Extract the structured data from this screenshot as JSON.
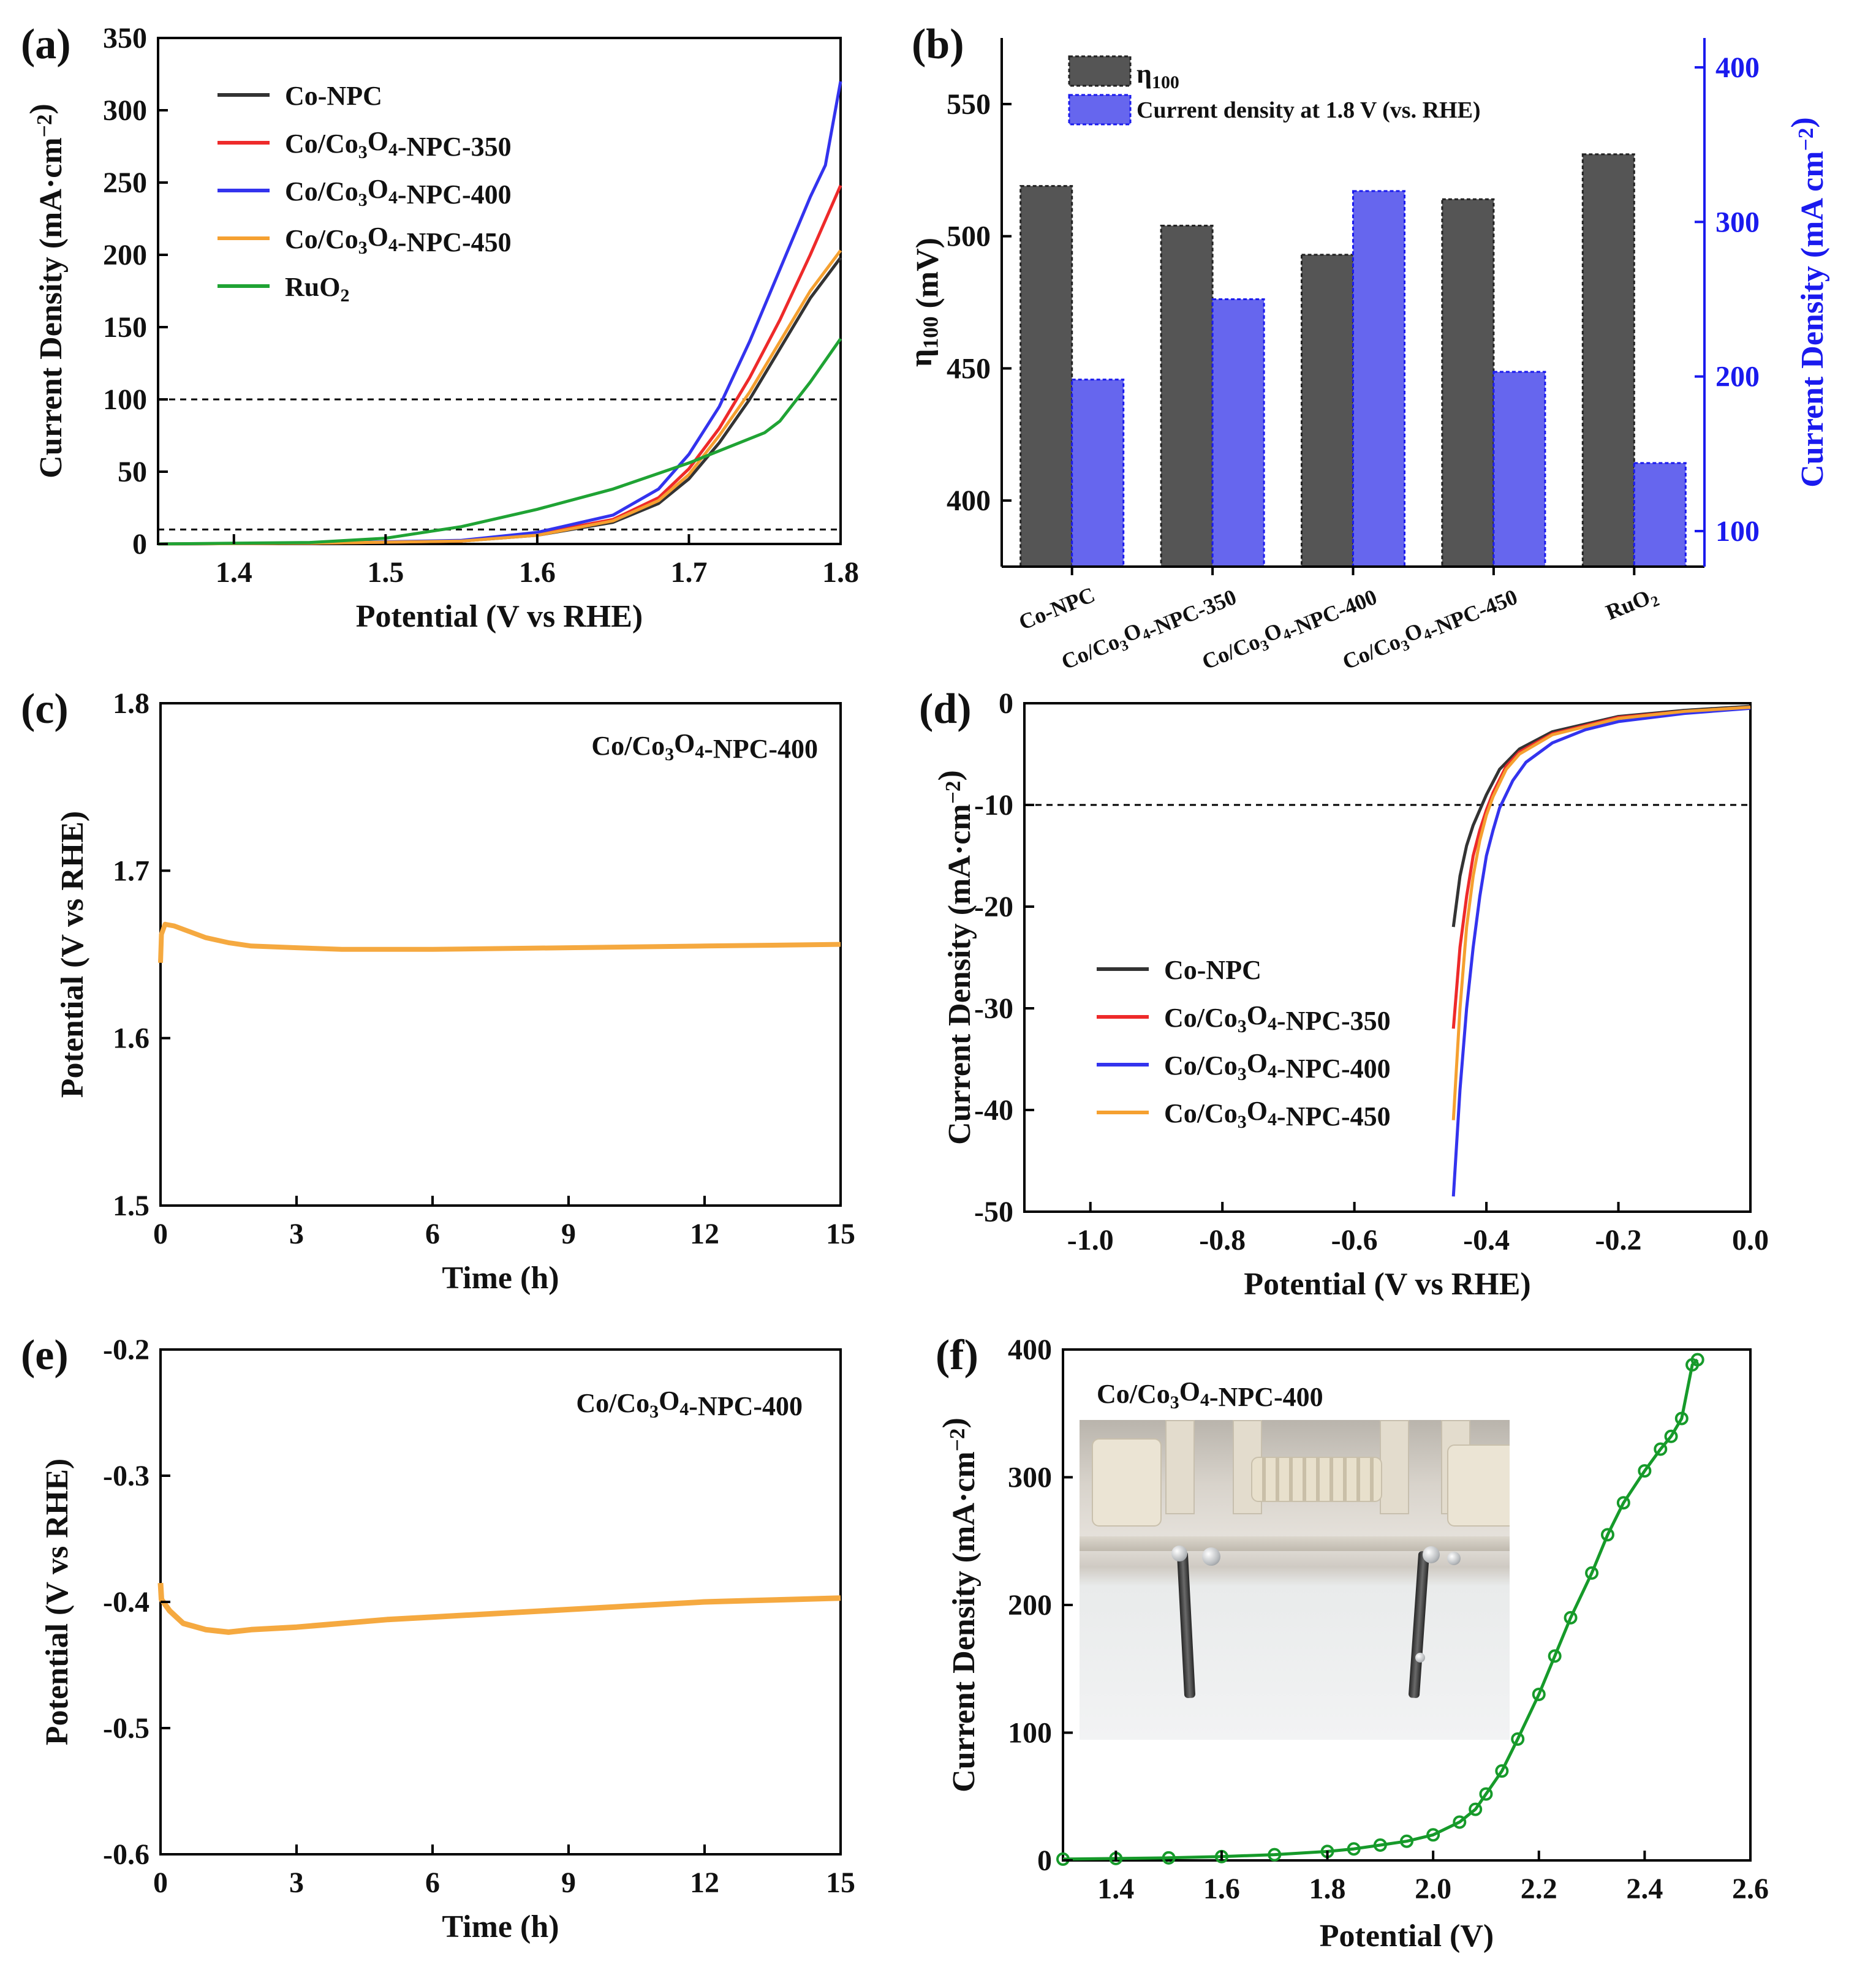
{
  "chart_data": [
    {
      "panel": "(a)",
      "type": "line",
      "xlabel": "Potential (V vs RHE)",
      "ylabel": "Current Density (mA·cm⁻²)",
      "xlim": [
        1.35,
        1.8
      ],
      "ylim": [
        0,
        350
      ],
      "xticks": [
        "1.4",
        "1.5",
        "1.6",
        "1.7",
        "1.8"
      ],
      "yticks": [
        "0",
        "50",
        "100",
        "150",
        "200",
        "250",
        "300",
        "350"
      ],
      "reference_lines": [
        100,
        10
      ],
      "legend": [
        "Co-NPC",
        "Co/Co3O4-NPC-350",
        "Co/Co3O4-NPC-400",
        "Co/Co3O4-NPC-450",
        "RuO2"
      ],
      "series": [
        {
          "name": "Co-NPC",
          "color": "#333333",
          "x": [
            1.35,
            1.45,
            1.55,
            1.6,
            1.65,
            1.68,
            1.7,
            1.72,
            1.74,
            1.76,
            1.78,
            1.8
          ],
          "y": [
            0,
            0.5,
            2,
            6,
            15,
            28,
            45,
            70,
            100,
            135,
            170,
            198
          ]
        },
        {
          "name": "Co/Co3O4-NPC-350",
          "color": "#ee2a2a",
          "x": [
            1.35,
            1.45,
            1.55,
            1.6,
            1.65,
            1.68,
            1.7,
            1.72,
            1.74,
            1.76,
            1.78,
            1.8
          ],
          "y": [
            0,
            0.5,
            2,
            7,
            17,
            32,
            52,
            80,
            115,
            155,
            200,
            248
          ]
        },
        {
          "name": "Co/Co3O4-NPC-400",
          "color": "#3333ee",
          "x": [
            1.35,
            1.45,
            1.55,
            1.6,
            1.65,
            1.68,
            1.7,
            1.72,
            1.74,
            1.76,
            1.78,
            1.79,
            1.8
          ],
          "y": [
            0,
            0.5,
            2.5,
            8,
            20,
            38,
            62,
            95,
            140,
            190,
            240,
            262,
            320
          ]
        },
        {
          "name": "Co/Co3O4-NPC-450",
          "color": "#f5a030",
          "x": [
            1.35,
            1.45,
            1.55,
            1.6,
            1.65,
            1.68,
            1.7,
            1.72,
            1.74,
            1.76,
            1.78,
            1.8
          ],
          "y": [
            0,
            0.5,
            2,
            6,
            16,
            30,
            48,
            75,
            105,
            140,
            175,
            203
          ]
        },
        {
          "name": "RuO2",
          "color": "#1fa334",
          "x": [
            1.35,
            1.45,
            1.5,
            1.55,
            1.6,
            1.65,
            1.7,
            1.75,
            1.76,
            1.78,
            1.8
          ],
          "y": [
            0,
            1,
            4,
            12,
            24,
            38,
            56,
            77,
            85,
            112,
            142
          ]
        }
      ]
    },
    {
      "panel": "(b)",
      "type": "bar",
      "categories": [
        "Co-NPC",
        "Co/Co3O4-NPC-350",
        "Co/Co3O4-NPC-400",
        "Co/Co3O4-NPC-450",
        "RuO2"
      ],
      "ylabel": "η100 (mV)",
      "y2label": "Current Density (mA cm⁻²)",
      "ylim": [
        375,
        575
      ],
      "y2lim": [
        77,
        419
      ],
      "yticks": [
        "400",
        "450",
        "500",
        "550"
      ],
      "y2ticks": [
        "100",
        "200",
        "300",
        "400"
      ],
      "legend": [
        "η100",
        "Current density at 1.8 V (vs. RHE)"
      ],
      "series": [
        {
          "name": "η100",
          "color": "#555555",
          "axis": "left",
          "values": [
            519,
            504,
            493,
            514,
            531
          ]
        },
        {
          "name": "Current density at 1.8 V (vs. RHE)",
          "color": "#6666ee",
          "axis": "right",
          "values": [
            198,
            250,
            320,
            203,
            144
          ]
        }
      ]
    },
    {
      "panel": "(c)",
      "type": "line",
      "annotation": "Co/Co3O4-NPC-400",
      "xlabel": "Time (h)",
      "ylabel": "Potential (V vs RHE)",
      "xlim": [
        0,
        15
      ],
      "ylim": [
        1.5,
        1.8
      ],
      "xticks": [
        "0",
        "3",
        "6",
        "9",
        "12",
        "15"
      ],
      "yticks": [
        "1.5",
        "1.6",
        "1.7",
        "1.8"
      ],
      "series": [
        {
          "name": "Co/Co3O4-NPC-400",
          "color": "#f5a940",
          "x": [
            0,
            0.02,
            0.1,
            0.3,
            0.6,
            1,
            1.5,
            2,
            3,
            4,
            6,
            9,
            12,
            15
          ],
          "y": [
            1.645,
            1.662,
            1.668,
            1.667,
            1.664,
            1.66,
            1.657,
            1.655,
            1.654,
            1.653,
            1.653,
            1.654,
            1.655,
            1.656
          ]
        }
      ]
    },
    {
      "panel": "(d)",
      "type": "line",
      "xlabel": "Potential (V vs RHE)",
      "ylabel": "Current Density (mA·cm⁻²)",
      "xlim": [
        -1.1,
        0
      ],
      "ylim": [
        -50,
        0
      ],
      "xticks": [
        "-1.0",
        "-0.8",
        "-0.6",
        "-0.4",
        "-0.2",
        "0.0"
      ],
      "yticks": [
        "-50",
        "-40",
        "-30",
        "-20",
        "-10",
        "0"
      ],
      "reference_lines": [
        -10
      ],
      "legend": [
        "Co-NPC",
        "Co/Co3O4-NPC-350",
        "Co/Co3O4-NPC-400",
        "Co/Co3O4-NPC-450"
      ],
      "series": [
        {
          "name": "Co-NPC",
          "color": "#333333",
          "x": [
            -0.45,
            -0.44,
            -0.43,
            -0.42,
            -0.41,
            -0.4,
            -0.38,
            -0.35,
            -0.3,
            -0.2,
            -0.1,
            0
          ],
          "y": [
            -22,
            -17,
            -14,
            -12,
            -10.5,
            -9,
            -6.5,
            -4.5,
            -2.8,
            -1.3,
            -0.7,
            -0.3
          ]
        },
        {
          "name": "Co/Co3O4-NPC-350",
          "color": "#ee2a2a",
          "x": [
            -0.45,
            -0.44,
            -0.43,
            -0.42,
            -0.41,
            -0.4,
            -0.39,
            -0.37,
            -0.35,
            -0.3,
            -0.2,
            -0.1,
            0
          ],
          "y": [
            -32,
            -24,
            -19,
            -15,
            -12.5,
            -10.5,
            -8.8,
            -6.2,
            -4.8,
            -3,
            -1.4,
            -0.8,
            -0.4
          ]
        },
        {
          "name": "Co/Co3O4-NPC-400",
          "color": "#3333ee",
          "x": [
            -0.45,
            -0.44,
            -0.43,
            -0.42,
            -0.41,
            -0.4,
            -0.39,
            -0.38,
            -0.36,
            -0.34,
            -0.3,
            -0.25,
            -0.2,
            -0.1,
            0
          ],
          "y": [
            -48.5,
            -38,
            -30,
            -24,
            -19,
            -15,
            -12.5,
            -10.3,
            -7.6,
            -5.8,
            -3.9,
            -2.6,
            -1.8,
            -1,
            -0.5
          ]
        },
        {
          "name": "Co/Co3O4-NPC-450",
          "color": "#f5a030",
          "x": [
            -0.45,
            -0.44,
            -0.43,
            -0.42,
            -0.41,
            -0.4,
            -0.39,
            -0.37,
            -0.35,
            -0.3,
            -0.2,
            -0.1,
            0
          ],
          "y": [
            -41,
            -30,
            -22,
            -17,
            -13.5,
            -11,
            -9.2,
            -6.5,
            -5,
            -3.1,
            -1.5,
            -0.8,
            -0.4
          ]
        }
      ]
    },
    {
      "panel": "(e)",
      "type": "line",
      "annotation": "Co/Co3O4-NPC-400",
      "xlabel": "Time (h)",
      "ylabel": "Potential (V vs RHE)",
      "xlim": [
        0,
        15
      ],
      "ylim": [
        -0.6,
        -0.2
      ],
      "xticks": [
        "0",
        "3",
        "6",
        "9",
        "12",
        "15"
      ],
      "yticks": [
        "-0.6",
        "-0.5",
        "-0.4",
        "-0.3",
        "-0.2"
      ],
      "series": [
        {
          "name": "Co/Co3O4-NPC-400",
          "color": "#f5a940",
          "x": [
            0,
            0.02,
            0.2,
            0.5,
            1,
            1.5,
            2,
            3,
            4,
            5,
            6,
            7,
            8,
            9,
            10,
            11,
            12,
            13,
            14,
            15
          ],
          "y": [
            -0.385,
            -0.398,
            -0.407,
            -0.417,
            -0.422,
            -0.424,
            -0.422,
            -0.42,
            -0.417,
            -0.414,
            -0.412,
            -0.41,
            -0.408,
            -0.406,
            -0.404,
            -0.402,
            -0.4,
            -0.399,
            -0.398,
            -0.397
          ]
        }
      ]
    },
    {
      "panel": "(f)",
      "type": "scatter",
      "annotation": "Co/Co3O4-NPC-400",
      "xlabel": "Potential (V)",
      "ylabel": "Current Density (mA·cm⁻²)",
      "xlim": [
        1.3,
        2.6
      ],
      "ylim": [
        0,
        400
      ],
      "xticks": [
        "1.4",
        "1.6",
        "1.8",
        "2.0",
        "2.2",
        "2.4",
        "2.6"
      ],
      "yticks": [
        "0",
        "100",
        "200",
        "300",
        "400"
      ],
      "series": [
        {
          "name": "Co/Co3O4-NPC-400",
          "color": "#169a2a",
          "x": [
            1.3,
            1.4,
            1.5,
            1.6,
            1.7,
            1.8,
            1.85,
            1.9,
            1.95,
            2.0,
            2.05,
            2.08,
            2.1,
            2.13,
            2.16,
            2.2,
            2.23,
            2.26,
            2.3,
            2.33,
            2.36,
            2.4,
            2.43,
            2.45,
            2.47,
            2.49,
            2.5
          ],
          "y": [
            1,
            1.5,
            2,
            3,
            4.5,
            7,
            9,
            12,
            15,
            20,
            30,
            40,
            52,
            70,
            95,
            130,
            160,
            190,
            225,
            255,
            280,
            305,
            322,
            332,
            346,
            388,
            392
          ]
        }
      ]
    }
  ]
}
